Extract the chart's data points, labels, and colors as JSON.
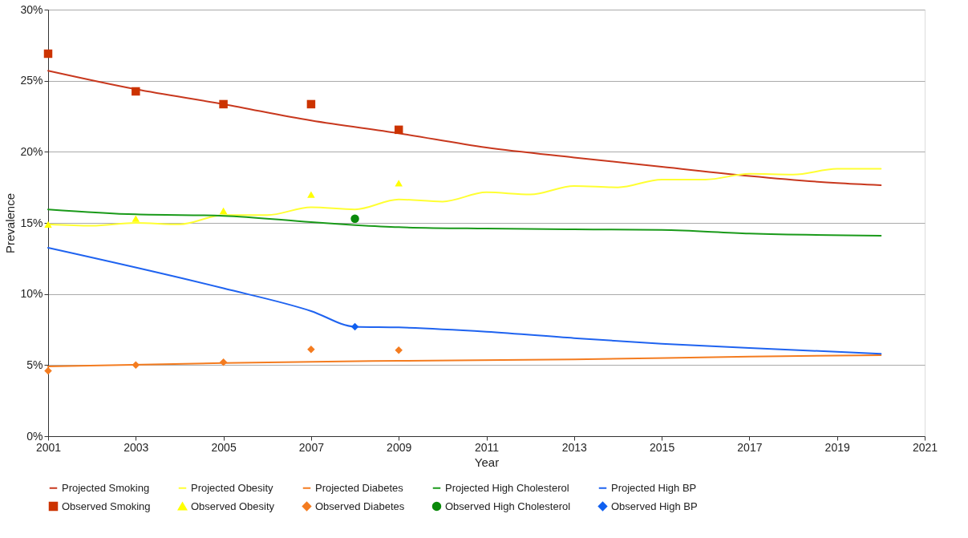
{
  "chart_data": {
    "type": "line",
    "xlabel": "Year",
    "ylabel": "Prevalence",
    "xlim": [
      2001,
      2021
    ],
    "xticks": [
      2001,
      2003,
      2005,
      2007,
      2009,
      2011,
      2013,
      2015,
      2017,
      2019,
      2021
    ],
    "ylim": [
      0,
      30
    ],
    "yticks": [
      {
        "value": 0,
        "label": "0%"
      },
      {
        "value": 5,
        "label": "5%"
      },
      {
        "value": 10,
        "label": "10%"
      },
      {
        "value": 15,
        "label": "15%"
      },
      {
        "value": 20,
        "label": "20%"
      },
      {
        "value": 25,
        "label": "25%"
      },
      {
        "value": 30,
        "label": "30%"
      }
    ],
    "grid": "y",
    "legend": "bottom",
    "line_style": "solid",
    "series": [
      {
        "name": "Projected Smoking",
        "marker": "none",
        "color": "#c8381e",
        "x": [
          2001,
          2003,
          2005,
          2007,
          2009,
          2011,
          2013,
          2015,
          2017,
          2019,
          2020
        ],
        "values": [
          25.7,
          24.4,
          23.35,
          22.2,
          21.3,
          20.3,
          19.6,
          18.95,
          18.3,
          17.8,
          17.65
        ]
      },
      {
        "name": "Projected Obesity",
        "marker": "none",
        "color": "#ffff33",
        "x": [
          2001,
          2002,
          2003,
          2004,
          2005,
          2006,
          2007,
          2008,
          2009,
          2010,
          2011,
          2012,
          2013,
          2014,
          2015,
          2016,
          2017,
          2018,
          2019,
          2020
        ],
        "values": [
          14.9,
          14.8,
          15.0,
          14.9,
          15.55,
          15.55,
          16.1,
          15.95,
          16.65,
          16.5,
          17.15,
          17.0,
          17.6,
          17.5,
          18.05,
          18.05,
          18.45,
          18.4,
          18.8,
          18.8
        ]
      },
      {
        "name": "Projected Diabetes",
        "marker": "none",
        "color": "#f47c20",
        "x": [
          2001,
          2005,
          2009,
          2013,
          2017,
          2020
        ],
        "values": [
          4.9,
          5.15,
          5.3,
          5.4,
          5.6,
          5.7
        ]
      },
      {
        "name": "Projected High Cholesterol",
        "marker": "none",
        "color": "#1a9a1a",
        "x": [
          2001,
          2003,
          2005,
          2007,
          2008,
          2009,
          2011,
          2013,
          2015,
          2017,
          2020
        ],
        "values": [
          15.95,
          15.6,
          15.5,
          15.05,
          14.85,
          14.7,
          14.6,
          14.55,
          14.5,
          14.25,
          14.1
        ]
      },
      {
        "name": "Projected High BP",
        "marker": "none",
        "color": "#1f63f0",
        "x": [
          2001,
          2005,
          2007,
          2008,
          2009,
          2011,
          2013,
          2015,
          2017,
          2020
        ],
        "values": [
          13.25,
          10.4,
          8.8,
          7.7,
          7.65,
          7.35,
          6.9,
          6.5,
          6.2,
          5.8
        ]
      },
      {
        "name": "Observed Smoking",
        "type": "scatter",
        "marker": "square",
        "color": "#cc3300",
        "x": [
          2001,
          2003,
          2005,
          2007,
          2009
        ],
        "values": [
          26.9,
          24.25,
          23.35,
          23.35,
          21.55
        ]
      },
      {
        "name": "Observed Obesity",
        "type": "scatter",
        "marker": "triangle",
        "color": "#ffff00",
        "x": [
          2001,
          2003,
          2005,
          2007,
          2009
        ],
        "values": [
          14.9,
          15.3,
          15.85,
          17.0,
          17.8
        ]
      },
      {
        "name": "Observed Diabetes",
        "type": "scatter",
        "marker": "diamond",
        "color": "#f47c20",
        "x": [
          2001,
          2003,
          2005,
          2007,
          2009
        ],
        "values": [
          4.6,
          5.0,
          5.2,
          6.1,
          6.05
        ]
      },
      {
        "name": "Observed High Cholesterol",
        "type": "scatter",
        "marker": "circle",
        "color": "#0a8a0a",
        "x": [
          2008
        ],
        "values": [
          15.3
        ]
      },
      {
        "name": "Observed High BP",
        "type": "scatter",
        "marker": "diamond",
        "color": "#1060f0",
        "x": [
          2008
        ],
        "values": [
          7.7
        ]
      }
    ]
  }
}
